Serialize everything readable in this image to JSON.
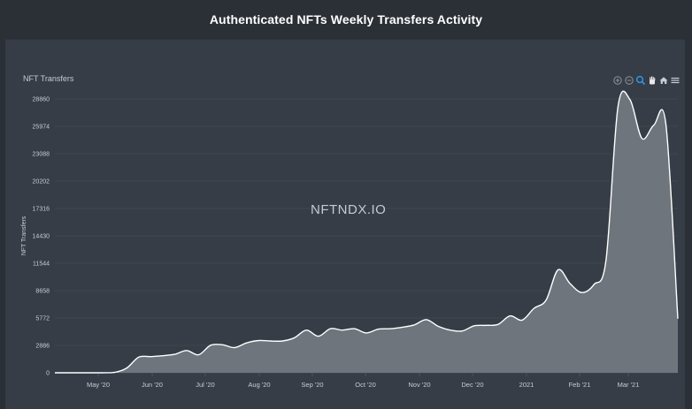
{
  "page": {
    "title": "Authenticated NFTs Weekly Transfers Activity"
  },
  "panel": {
    "title": "NFT Transfers",
    "watermark": "NFTNDX.IO"
  },
  "toolbar": {
    "icons": [
      "zoom-in-icon",
      "zoom-out-icon",
      "selection-zoom-icon",
      "pan-hand-icon",
      "home-reset-icon",
      "menu-icon"
    ]
  },
  "colors": {
    "background": "#2b3037",
    "panel": "#363d46",
    "area_fill": "#6f757d",
    "line": "#ffffff",
    "active_tool": "#2f9af0"
  },
  "chart_data": {
    "type": "area",
    "title": "Authenticated NFTs Weekly Transfers Activity",
    "ylabel": "NFT Transfers",
    "ylim": [
      0,
      28860
    ],
    "yticks": [
      0,
      2886,
      5772,
      8658,
      11544,
      14430,
      17316,
      20202,
      23088,
      25974,
      28860
    ],
    "xticks": [
      "May '20",
      "Jun '20",
      "Jul '20",
      "Aug '20",
      "Sep '20",
      "Oct '20",
      "Nov '20",
      "Dec '20",
      "2021",
      "Feb '21",
      "Mar '21"
    ],
    "grid": true,
    "series": [
      {
        "values": [
          [
            "2020-04-01",
            0
          ],
          [
            "2020-04-08",
            0
          ],
          [
            "2020-04-15",
            0
          ],
          [
            "2020-04-22",
            0
          ],
          [
            "2020-04-29",
            0
          ],
          [
            "2020-05-06",
            50
          ],
          [
            "2020-05-13",
            500
          ],
          [
            "2020-05-20",
            1650
          ],
          [
            "2020-05-27",
            1700
          ],
          [
            "2020-06-03",
            1800
          ],
          [
            "2020-06-10",
            1950
          ],
          [
            "2020-06-17",
            2350
          ],
          [
            "2020-06-24",
            1900
          ],
          [
            "2020-07-01",
            2900
          ],
          [
            "2020-07-08",
            2950
          ],
          [
            "2020-07-15",
            2650
          ],
          [
            "2020-07-22",
            3150
          ],
          [
            "2020-07-29",
            3400
          ],
          [
            "2020-08-05",
            3350
          ],
          [
            "2020-08-12",
            3350
          ],
          [
            "2020-08-19",
            3700
          ],
          [
            "2020-08-26",
            4500
          ],
          [
            "2020-09-02",
            3850
          ],
          [
            "2020-09-09",
            4650
          ],
          [
            "2020-09-16",
            4500
          ],
          [
            "2020-09-23",
            4650
          ],
          [
            "2020-09-30",
            4200
          ],
          [
            "2020-10-07",
            4600
          ],
          [
            "2020-10-14",
            4650
          ],
          [
            "2020-10-21",
            4800
          ],
          [
            "2020-10-28",
            5050
          ],
          [
            "2020-11-04",
            5600
          ],
          [
            "2020-11-11",
            4900
          ],
          [
            "2020-11-18",
            4500
          ],
          [
            "2020-11-25",
            4400
          ],
          [
            "2020-12-02",
            4950
          ],
          [
            "2020-12-09",
            5000
          ],
          [
            "2020-12-16",
            5100
          ],
          [
            "2020-12-23",
            6000
          ],
          [
            "2020-12-30",
            5550
          ],
          [
            "2021-01-06",
            6800
          ],
          [
            "2021-01-13",
            7650
          ],
          [
            "2021-01-20",
            10850
          ],
          [
            "2021-01-27",
            9400
          ],
          [
            "2021-02-03",
            8450
          ],
          [
            "2021-02-10",
            9300
          ],
          [
            "2021-02-17",
            11850
          ],
          [
            "2021-02-24",
            28000
          ],
          [
            "2021-03-03",
            28800
          ],
          [
            "2021-03-10",
            24700
          ],
          [
            "2021-03-17",
            26100
          ],
          [
            "2021-03-24",
            26200
          ],
          [
            "2021-03-31",
            5700
          ]
        ]
      }
    ]
  }
}
